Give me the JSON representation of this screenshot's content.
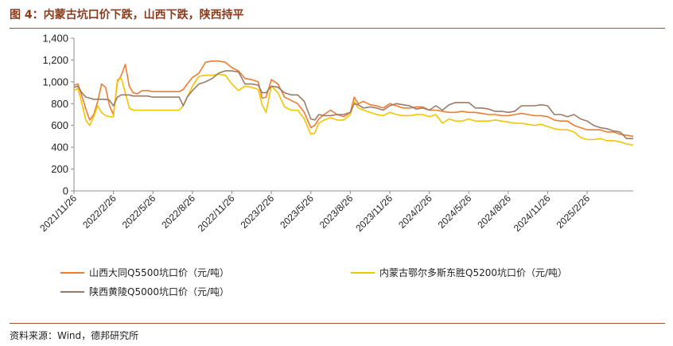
{
  "figure": {
    "title": "图 4：内蒙古坑口价下跌，山西下跌，陕西持平",
    "source": "资料来源：Wind，德邦研究所"
  },
  "chart_data": {
    "type": "line",
    "title": "",
    "xlabel": "",
    "ylabel": "",
    "ylim": [
      0,
      1400
    ],
    "yticks": [
      "0",
      "200",
      "400",
      "600",
      "800",
      "1,000",
      "1,200",
      "1,400"
    ],
    "yticks_values": [
      0,
      200,
      400,
      600,
      800,
      1000,
      1200,
      1400
    ],
    "xticks": [
      "2021/11/26",
      "2022/2/26",
      "2022/5/26",
      "2022/8/26",
      "2022/11/26",
      "2023/2/26",
      "2023/5/26",
      "2023/8/26",
      "2023/11/26",
      "2024/2/26",
      "2024/5/26",
      "2024/8/26",
      "2024/11/26",
      "2025/2/26"
    ],
    "xticks_months": [
      0,
      3,
      6,
      9,
      12,
      15,
      18,
      21,
      24,
      27,
      30,
      33,
      36,
      39
    ],
    "x_unit": "months since 2021/11/26",
    "xlim_months": [
      0,
      42.5
    ],
    "grid": false,
    "legend_position": "bottom",
    "series": [
      {
        "name": "山西大同Q5500坑口价（元/吨）",
        "color": "#ed7d31",
        "x": [
          0,
          0.3,
          0.6,
          0.9,
          1.2,
          1.5,
          1.8,
          2.1,
          2.4,
          2.7,
          3.0,
          3.3,
          3.6,
          3.9,
          4.2,
          4.5,
          4.8,
          5.2,
          5.6,
          6.0,
          7.0,
          8.0,
          8.3,
          8.6,
          9.0,
          9.5,
          10.0,
          10.5,
          11.0,
          11.5,
          12.0,
          12.5,
          13.0,
          13.5,
          14.0,
          14.3,
          14.6,
          15.0,
          15.5,
          16.0,
          16.5,
          17.0,
          17.5,
          18.0,
          18.3,
          18.6,
          19.0,
          19.5,
          20.0,
          20.5,
          21.0,
          21.3,
          21.6,
          22.0,
          22.5,
          23.0,
          23.5,
          24.0,
          24.5,
          25.0,
          25.5,
          26.0,
          26.5,
          27.0,
          27.5,
          28.0,
          28.5,
          29.0,
          29.5,
          30.0,
          30.5,
          31.0,
          31.5,
          32.0,
          32.5,
          33.0,
          33.5,
          34.0,
          34.5,
          35.0,
          35.5,
          36.0,
          36.5,
          37.0,
          37.5,
          38.0,
          38.5,
          39.0,
          39.5,
          40.0,
          40.5,
          41.0,
          41.5,
          42.0,
          42.5
        ],
        "values": [
          970,
          980,
          870,
          750,
          650,
          700,
          820,
          980,
          950,
          780,
          700,
          1000,
          1060,
          1160,
          960,
          900,
          890,
          920,
          920,
          910,
          910,
          910,
          930,
          980,
          1040,
          1080,
          1180,
          1190,
          1190,
          1180,
          1130,
          1100,
          1030,
          1020,
          1000,
          850,
          860,
          1020,
          980,
          860,
          830,
          800,
          720,
          580,
          600,
          660,
          700,
          740,
          700,
          680,
          720,
          860,
          800,
          820,
          790,
          780,
          760,
          800,
          780,
          760,
          760,
          770,
          770,
          740,
          740,
          730,
          720,
          720,
          730,
          720,
          720,
          710,
          700,
          700,
          690,
          690,
          700,
          710,
          700,
          690,
          690,
          680,
          650,
          640,
          640,
          600,
          580,
          560,
          560,
          560,
          540,
          540,
          520,
          510,
          500
        ]
      },
      {
        "name": "内蒙古鄂尔多斯东胜Q5200坑口价（元/吨）",
        "color": "#f5c400",
        "x": [
          0,
          0.3,
          0.6,
          0.9,
          1.2,
          1.5,
          1.8,
          2.1,
          2.4,
          2.7,
          3.0,
          3.3,
          3.6,
          3.9,
          4.2,
          4.5,
          4.8,
          5.2,
          5.6,
          6.0,
          7.0,
          8.0,
          8.3,
          8.6,
          9.0,
          9.5,
          10.0,
          10.5,
          11.0,
          11.5,
          12.0,
          12.5,
          13.0,
          13.5,
          14.0,
          14.3,
          14.6,
          15.0,
          15.5,
          16.0,
          16.5,
          17.0,
          17.5,
          18.0,
          18.3,
          18.6,
          19.0,
          19.5,
          20.0,
          20.5,
          21.0,
          21.3,
          21.6,
          22.0,
          22.5,
          23.0,
          23.5,
          24.0,
          24.5,
          25.0,
          25.5,
          26.0,
          26.5,
          27.0,
          27.5,
          28.0,
          28.5,
          29.0,
          29.5,
          30.0,
          30.5,
          31.0,
          31.5,
          32.0,
          32.5,
          33.0,
          33.5,
          34.0,
          34.5,
          35.0,
          35.5,
          36.0,
          36.5,
          37.0,
          37.5,
          38.0,
          38.5,
          39.0,
          39.5,
          40.0,
          40.5,
          41.0,
          41.5,
          42.0,
          42.5
        ],
        "values": [
          920,
          940,
          800,
          650,
          600,
          680,
          780,
          720,
          690,
          680,
          680,
          1020,
          1030,
          900,
          760,
          740,
          740,
          740,
          740,
          740,
          740,
          740,
          780,
          860,
          960,
          1050,
          1060,
          1060,
          1070,
          1060,
          980,
          920,
          960,
          950,
          930,
          790,
          720,
          960,
          900,
          770,
          740,
          740,
          660,
          520,
          530,
          620,
          650,
          670,
          650,
          650,
          700,
          820,
          760,
          740,
          720,
          700,
          690,
          720,
          700,
          690,
          690,
          700,
          700,
          680,
          700,
          620,
          660,
          640,
          640,
          660,
          640,
          640,
          640,
          650,
          640,
          630,
          620,
          620,
          610,
          600,
          610,
          590,
          570,
          560,
          560,
          540,
          490,
          470,
          470,
          480,
          460,
          460,
          450,
          430,
          420
        ]
      },
      {
        "name": "陕西黄陵Q5000坑口价（元/吨）",
        "color": "#9c7b66",
        "x": [
          0,
          0.3,
          0.6,
          0.9,
          1.2,
          1.5,
          1.8,
          2.1,
          2.4,
          2.7,
          3.0,
          3.3,
          3.6,
          3.9,
          4.2,
          4.5,
          4.8,
          5.2,
          5.6,
          6.0,
          7.0,
          8.0,
          8.3,
          8.6,
          9.0,
          9.5,
          10.0,
          10.5,
          11.0,
          11.5,
          12.0,
          12.5,
          13.0,
          13.5,
          14.0,
          14.3,
          14.6,
          15.0,
          15.5,
          16.0,
          16.5,
          17.0,
          17.5,
          18.0,
          18.3,
          18.6,
          19.0,
          19.5,
          20.0,
          20.5,
          21.0,
          21.3,
          21.6,
          22.0,
          22.5,
          23.0,
          23.5,
          24.0,
          24.5,
          25.0,
          25.5,
          26.0,
          26.5,
          27.0,
          27.5,
          28.0,
          28.5,
          29.0,
          29.5,
          30.0,
          30.5,
          31.0,
          31.5,
          32.0,
          32.5,
          33.0,
          33.5,
          34.0,
          34.5,
          35.0,
          35.5,
          36.0,
          36.5,
          37.0,
          37.5,
          38.0,
          38.5,
          39.0,
          39.5,
          40.0,
          40.5,
          41.0,
          41.5,
          42.0,
          42.5
        ],
        "values": [
          950,
          960,
          900,
          860,
          850,
          840,
          840,
          840,
          840,
          830,
          780,
          860,
          880,
          880,
          880,
          870,
          870,
          870,
          870,
          860,
          860,
          860,
          780,
          860,
          920,
          980,
          1000,
          1030,
          1080,
          1100,
          1100,
          1090,
          980,
          980,
          970,
          900,
          900,
          960,
          950,
          900,
          880,
          880,
          820,
          660,
          650,
          700,
          690,
          690,
          700,
          700,
          720,
          800,
          790,
          760,
          770,
          760,
          740,
          780,
          800,
          790,
          780,
          750,
          760,
          740,
          780,
          740,
          790,
          810,
          810,
          810,
          760,
          760,
          750,
          730,
          730,
          720,
          730,
          780,
          780,
          780,
          790,
          780,
          700,
          700,
          680,
          700,
          660,
          640,
          600,
          580,
          570,
          550,
          540,
          480,
          480
        ]
      }
    ]
  }
}
